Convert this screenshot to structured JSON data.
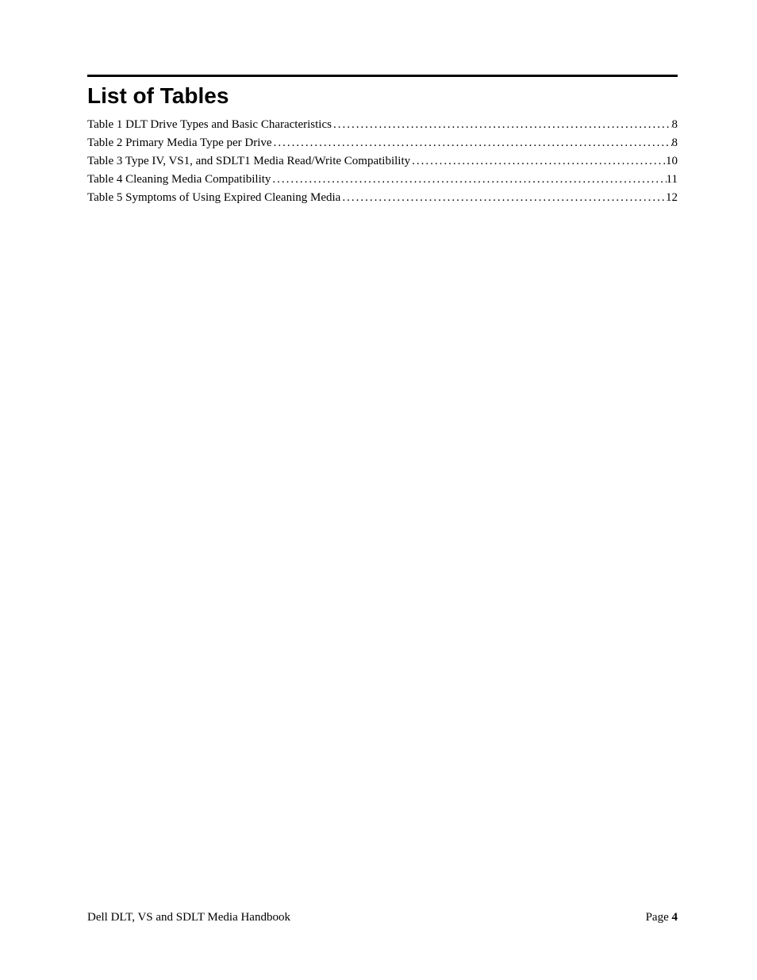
{
  "heading": "List of Tables",
  "toc": [
    {
      "title": "Table 1 DLT Drive Types and Basic Characteristics",
      "page": "8"
    },
    {
      "title": "Table 2 Primary Media Type per Drive",
      "page": "8"
    },
    {
      "title": "Table 3 Type IV, VS1, and SDLT1 Media Read/Write Compatibility",
      "page": "10"
    },
    {
      "title": "Table 4 Cleaning Media Compatibility",
      "page": "11"
    },
    {
      "title": "Table 5 Symptoms of Using Expired Cleaning Media",
      "page": "12"
    }
  ],
  "footer": {
    "left": "Dell DLT, VS and SDLT Media Handbook",
    "page_label": "Page",
    "page_number": "4"
  }
}
